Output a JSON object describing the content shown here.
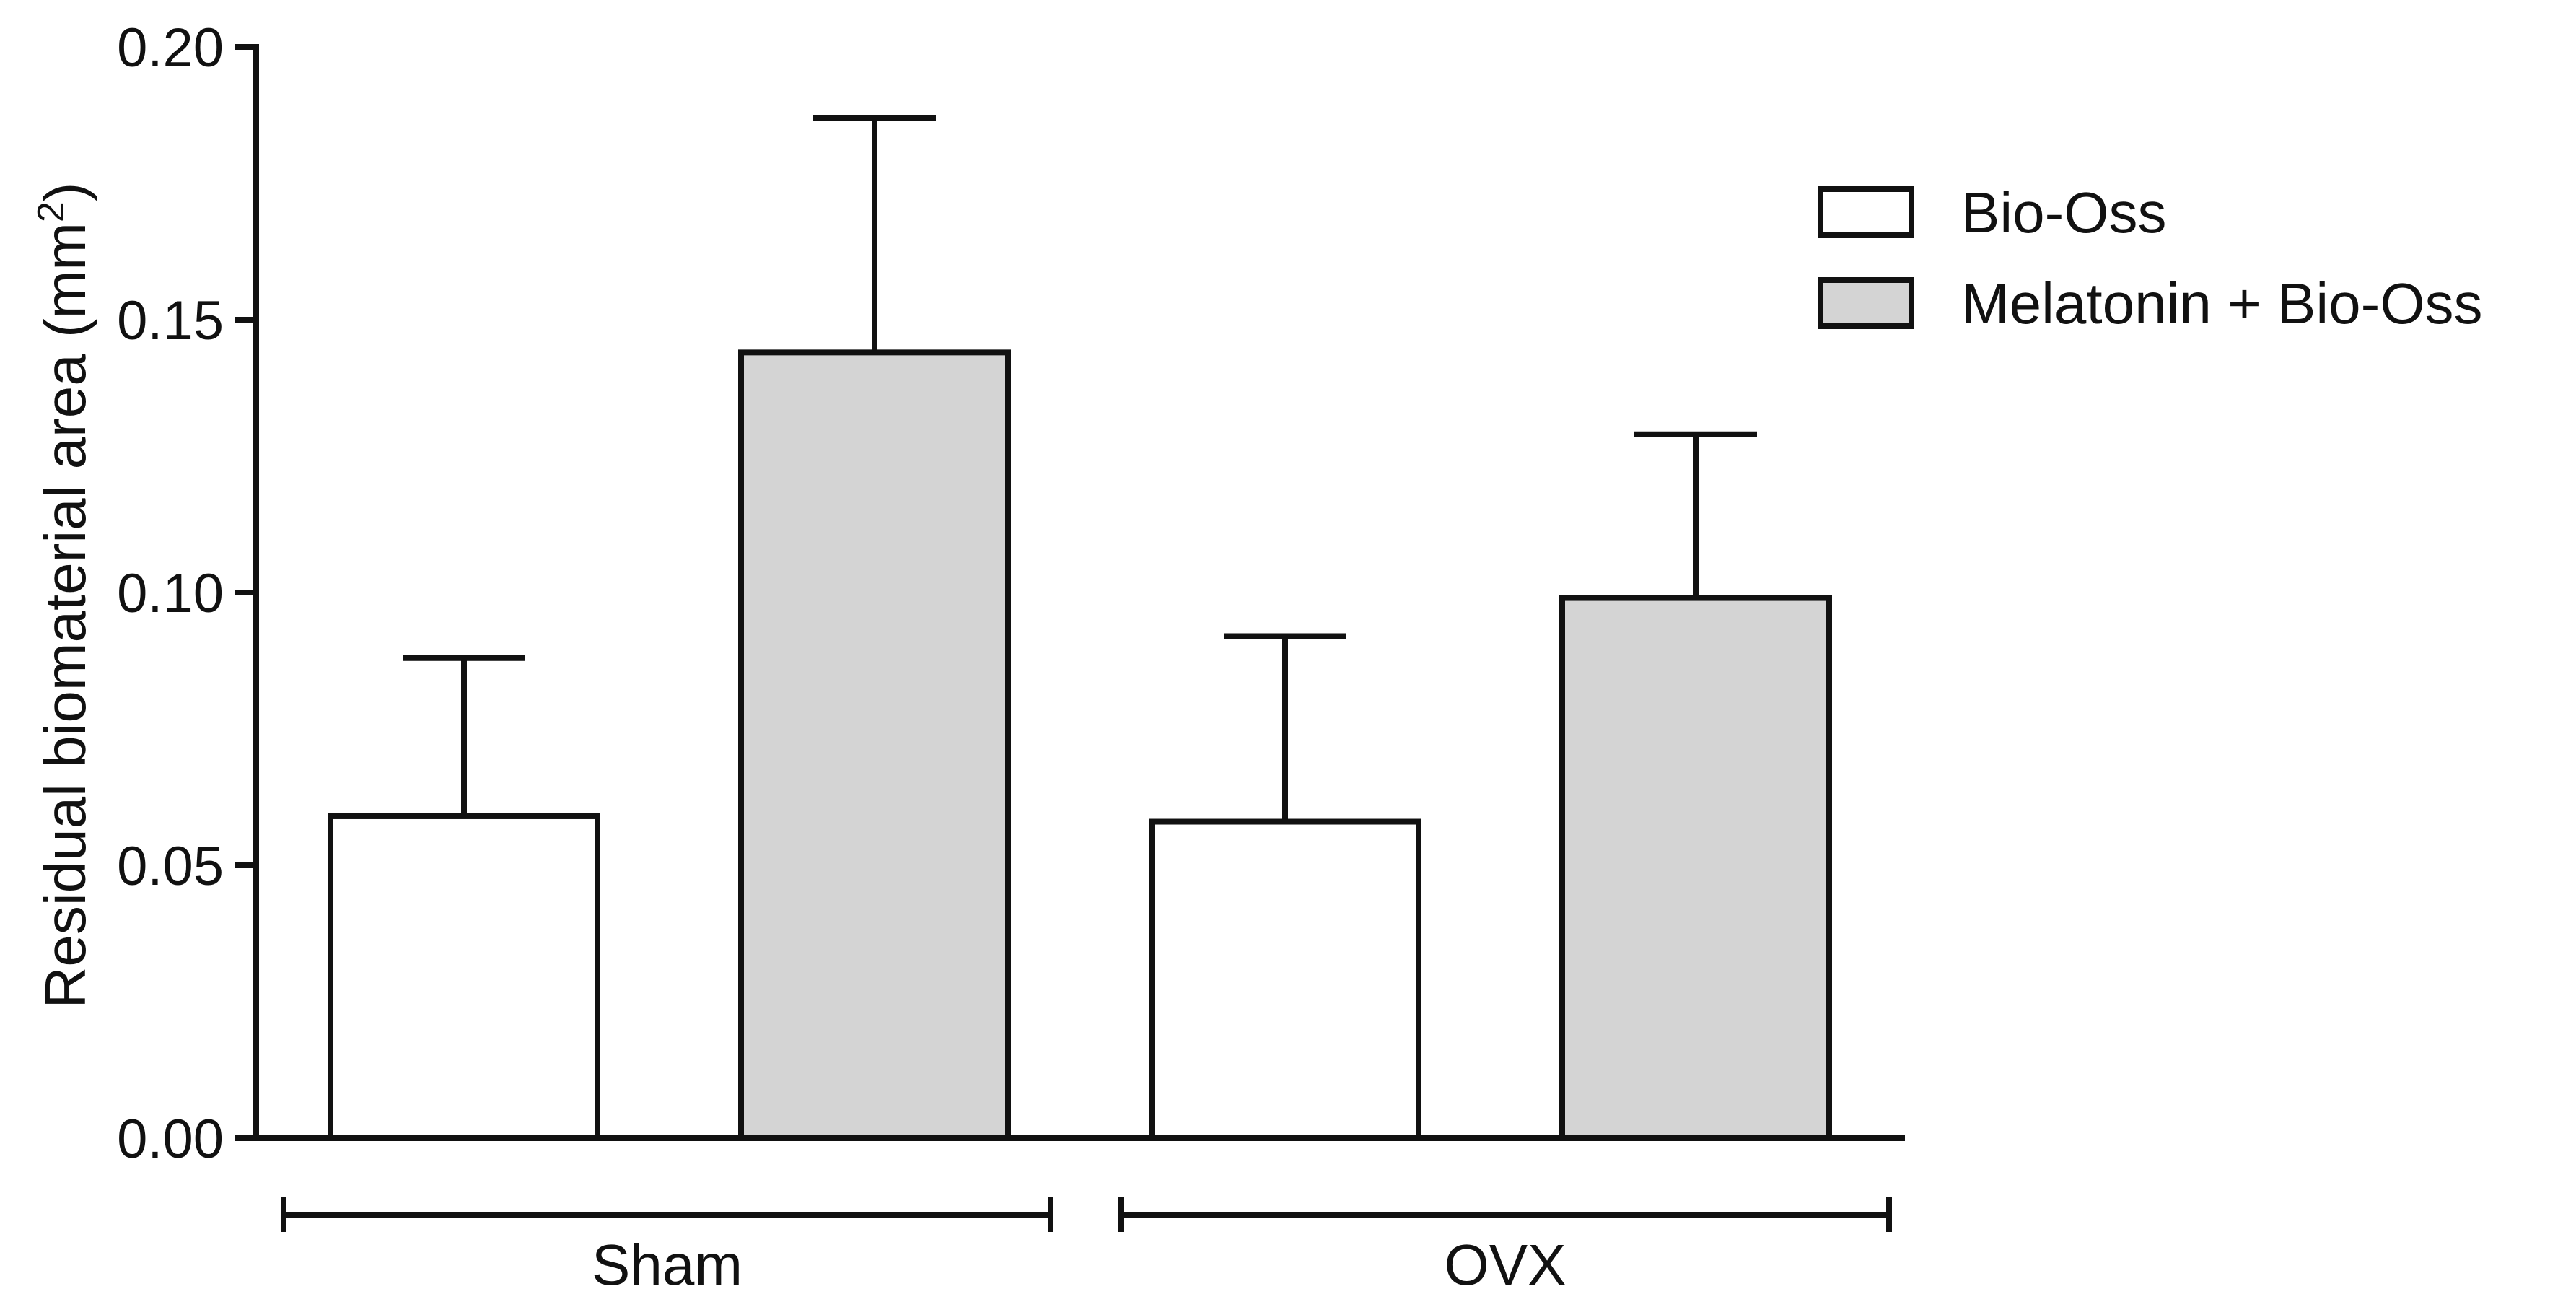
{
  "chart_data": {
    "type": "bar",
    "categories": [
      "Sham",
      "OVX"
    ],
    "series": [
      {
        "name": "Bio-Oss",
        "values": [
          0.059,
          0.058
        ],
        "error": [
          0.029,
          0.034
        ],
        "color": "#ffffff"
      },
      {
        "name": "Melatonin + Bio-Oss",
        "values": [
          0.144,
          0.099
        ],
        "error": [
          0.043,
          0.03
        ],
        "color": "#d4d4d4"
      }
    ],
    "xlabel": "",
    "ylabel": "Residual biomaterial area (mm",
    "ylabel_superscript": "2",
    "ylabel_suffix": ")",
    "ylim": [
      0,
      0.2
    ],
    "yticks": [
      "0.00",
      "0.05",
      "0.10",
      "0.15",
      "0.20"
    ],
    "grid": false,
    "legend_position": "top-right",
    "stroke_color": "#111111"
  }
}
